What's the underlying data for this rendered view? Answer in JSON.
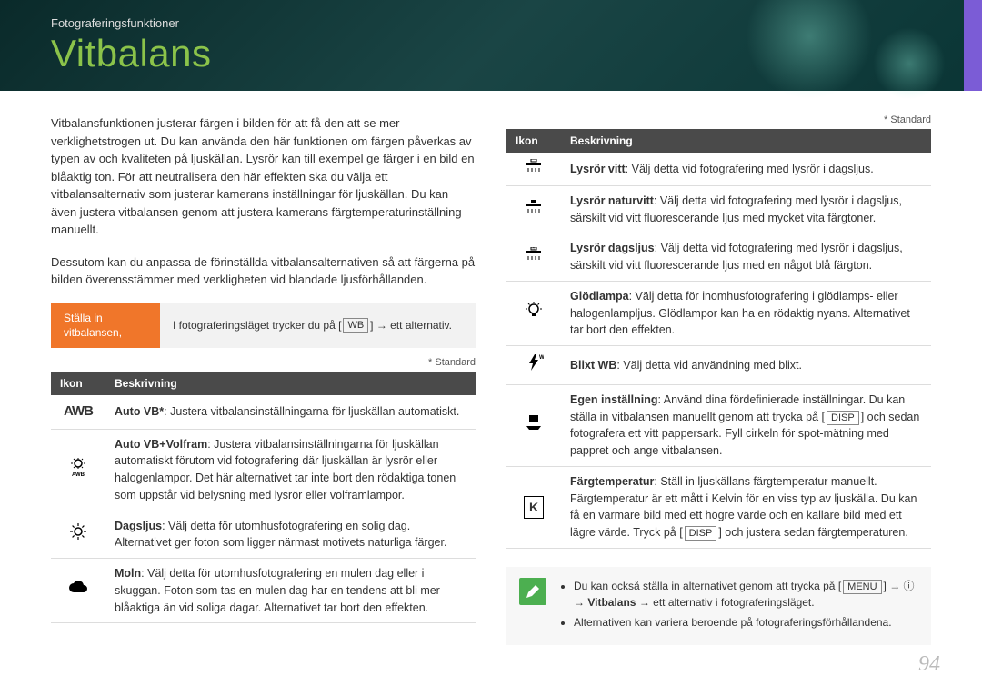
{
  "header": {
    "section": "Fotograferingsfunktioner",
    "title": "Vitbalans"
  },
  "left": {
    "para1": "Vitbalansfunktionen justerar färgen i bilden för att få den att se mer verklighetstrogen ut. Du kan använda den här funktionen om färgen påverkas av typen av och kvaliteten på ljuskällan. Lysrör kan till exempel ge färger i en bild en blåaktig ton. För att neutralisera den här effekten ska du välja ett vitbalansalternativ som justerar kamerans inställningar för ljuskällan. Du kan även justera vitbalansen genom att justera kamerans färgtemperaturinställning manuellt.",
    "para2": "Dessutom kan du anpassa de förinställda vitbalansalternativen så att färgerna på bilden överensstämmer med verkligheten vid blandade ljusförhållanden.",
    "step_label_1": "Ställa in",
    "step_label_2": "vitbalansen,",
    "step_instr_pre": "I fotograferingsläget trycker du på [",
    "step_instr_post": "] → ett alternativ.",
    "standard": "* Standard",
    "th_icon": "Ikon",
    "th_desc": "Beskrivning"
  },
  "rows_left": [
    {
      "icon": "AWB",
      "label": "Auto VB*",
      "text": ": Justera vitbalansinställningarna för ljuskällan automatiskt."
    },
    {
      "icon": "awb-w",
      "label": "Auto VB+Volfram",
      "text": ": Justera vitbalansinställningarna för ljuskällan automatiskt förutom vid fotografering där ljuskällan är lysrör eller halogenlampor. Det här alternativet tar inte bort den rödaktiga tonen som uppstår vid belysning med lysrör eller volframlampor."
    },
    {
      "icon": "sun",
      "label": "Dagsljus",
      "text": ": Välj detta för utomhusfotografering en solig dag. Alternativet ger foton som ligger närmast motivets naturliga färger."
    },
    {
      "icon": "cloud",
      "label": "Moln",
      "text": ": Välj detta för utomhusfotografering en mulen dag eller i skuggan. Foton som tas en mulen dag har en tendens att bli mer blåaktiga än vid soliga dagar. Alternativet tar bort den effekten."
    }
  ],
  "right": {
    "standard": "* Standard",
    "th_icon": "Ikon",
    "th_desc": "Beskrivning"
  },
  "rows_right": [
    {
      "icon": "fw",
      "label": "Lysrör vitt",
      "text": ": Välj detta vid fotografering med lysrör i dagsljus."
    },
    {
      "icon": "fn",
      "label": "Lysrör naturvitt",
      "text": ": Välj detta vid fotografering med lysrör i dagsljus, särskilt vid vitt fluorescerande ljus med mycket vita färgtoner."
    },
    {
      "icon": "fd",
      "label": "Lysrör dagsljus",
      "text": ": Välj detta vid fotografering med lysrör i dagsljus, särskilt vid vitt fluorescerande ljus med en något blå färgton."
    },
    {
      "icon": "bulb",
      "label": "Glödlampa",
      "text": ": Välj detta för inomhusfotografering i glödlamps- eller halogenlampljus. Glödlampor kan ha en rödaktig nyans. Alternativet tar bort den effekten."
    },
    {
      "icon": "flash",
      "label": "Blixt WB",
      "text": ": Välj detta vid användning med blixt."
    },
    {
      "icon": "custom",
      "label": "Egen inställning",
      "text_html": ": Använd dina fördefinierade inställningar. Du kan ställa in vitbalansen manuellt genom att trycka på [<span class=\"key\">DISP</span>] och sedan fotografera ett vitt pappersark. Fyll cirkeln för spot-mätning med pappret och ange vitbalansen."
    },
    {
      "icon": "K",
      "label": "Färgtemperatur",
      "text_html": ": Ställ in ljuskällans färgtemperatur manuellt. Färgtemperatur är ett mått i Kelvin för en viss typ av ljuskälla. Du kan få en varmare bild med ett högre värde och en kallare bild med ett lägre värde. Tryck på [<span class=\"key\">DISP</span>] och justera sedan färgtemperaturen."
    }
  ],
  "tip": {
    "item1_html": "Du kan också ställa in alternativet genom att trycka på [<span class=\"key\">MENU</span>] → ⓘ → <b>Vitbalans</b> → ett alternativ i fotograferingsläget.",
    "item2": "Alternativen kan variera beroende på fotograferingsförhållandena."
  },
  "page_number": "94",
  "colors": {
    "accent": "#f0762a",
    "title": "#8bc34a",
    "header_bg": "#0a3535"
  }
}
